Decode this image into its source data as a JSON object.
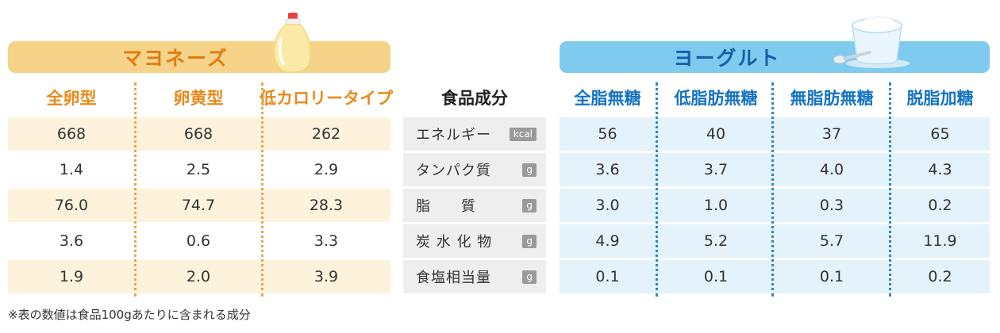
{
  "mayonnaise": {
    "title": "マヨネーズ",
    "columns": [
      "全卵型",
      "卵黄型",
      "低カロリータイプ"
    ]
  },
  "yogurt": {
    "title": "ヨーグルト",
    "columns": [
      "全脂無糖",
      "低脂肪無糖",
      "無脂肪無糖",
      "脱脂加糖"
    ]
  },
  "center_header": "食品成分",
  "nutrients": [
    {
      "name": "エネルギー",
      "unit": "kcal"
    },
    {
      "name": "タンパク質",
      "unit": "g"
    },
    {
      "name": "脂　　質",
      "unit": "g"
    },
    {
      "name": "炭 水 化 物",
      "unit": "g"
    },
    {
      "name": "食塩相当量",
      "unit": "g"
    }
  ],
  "rows": [
    {
      "mayo": [
        "668",
        "668",
        "262"
      ],
      "yog": [
        "56",
        "40",
        "37",
        "65"
      ]
    },
    {
      "mayo": [
        "1.4",
        "2.5",
        "2.9"
      ],
      "yog": [
        "3.6",
        "3.7",
        "4.0",
        "4.3"
      ]
    },
    {
      "mayo": [
        "76.0",
        "74.7",
        "28.3"
      ],
      "yog": [
        "3.0",
        "1.0",
        "0.3",
        "0.2"
      ]
    },
    {
      "mayo": [
        "3.6",
        "0.6",
        "3.3"
      ],
      "yog": [
        "4.9",
        "5.2",
        "5.7",
        "11.9"
      ]
    },
    {
      "mayo": [
        "1.9",
        "2.0",
        "3.9"
      ],
      "yog": [
        "0.1",
        "0.1",
        "0.1",
        "0.2"
      ]
    }
  ],
  "footnote": "※表の数値は食品100gあたりに含まれる成分",
  "colors": {
    "mayo_banner": "#f5d48a",
    "mayo_band": "#fdf2dc",
    "mayo_text": "#e88a1c",
    "yog_banner": "#7fcbef",
    "yog_band": "#e3f2fb",
    "yog_text": "#1573c2",
    "label_bg": "#eeeeee",
    "unit_bg": "#9a9a9a"
  },
  "icons": [
    "mayonnaise-bottle-icon",
    "yogurt-cup-icon"
  ]
}
